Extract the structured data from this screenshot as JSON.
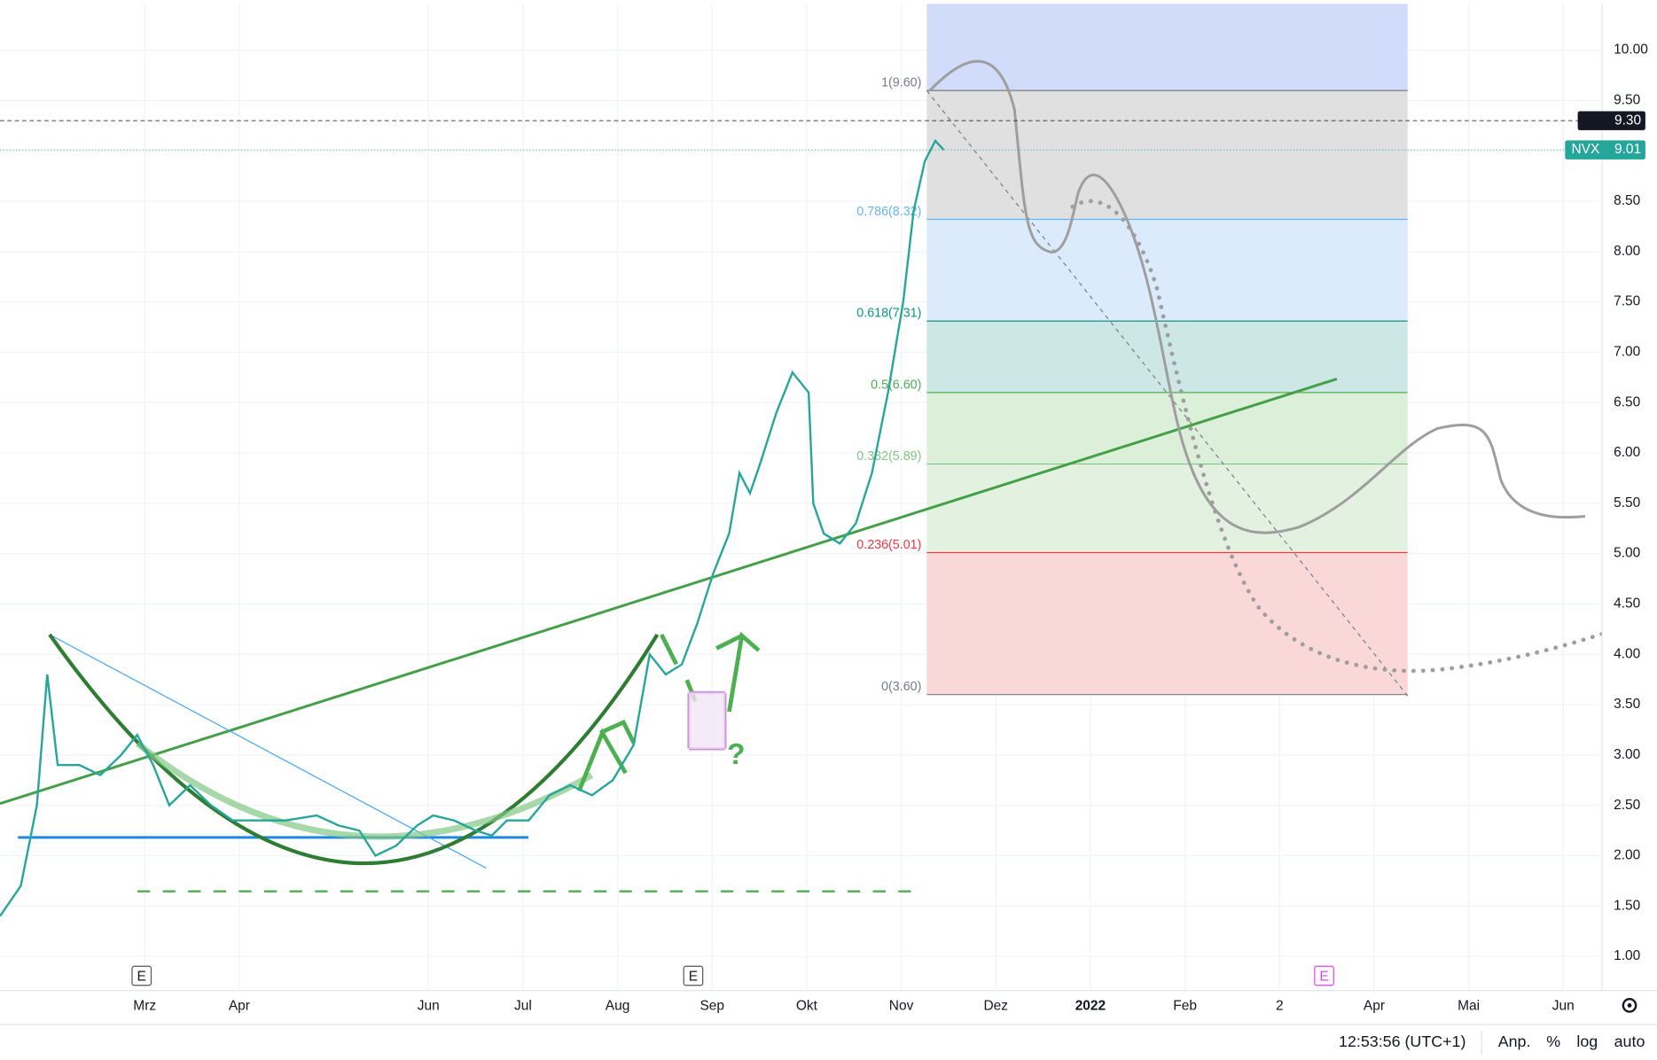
{
  "chart_data": {
    "type": "line",
    "series": [
      {
        "name": "NVX",
        "color": "#26a69a",
        "x": [
          0.47,
          0.69,
          0.86,
          0.97,
          1.08,
          1.31,
          1.53,
          1.75,
          1.92,
          2.09,
          2.26,
          2.48,
          2.7,
          2.93,
          3.15,
          3.49,
          3.82,
          4.05,
          4.27,
          4.44,
          4.66,
          4.88,
          5.05,
          5.27,
          5.5,
          5.67,
          5.83,
          6.06,
          6.28,
          6.5,
          6.73,
          6.95,
          7.17,
          7.34,
          7.51,
          7.68,
          7.84,
          8.01,
          8.18,
          8.29,
          8.4,
          8.51,
          8.68,
          8.85,
          9.02,
          9.07,
          9.18,
          9.35,
          9.52,
          9.69,
          9.86,
          10.02,
          10.13,
          10.25,
          10.36,
          10.45
        ],
        "values": [
          1.4,
          1.7,
          2.5,
          3.8,
          2.9,
          2.9,
          2.8,
          3.0,
          3.2,
          2.9,
          2.5,
          2.7,
          2.5,
          2.35,
          2.35,
          2.35,
          2.4,
          2.3,
          2.25,
          2.0,
          2.1,
          2.3,
          2.4,
          2.35,
          2.25,
          2.2,
          2.35,
          2.35,
          2.6,
          2.7,
          2.6,
          2.75,
          3.1,
          4.0,
          3.8,
          3.9,
          4.3,
          4.8,
          5.2,
          5.8,
          5.6,
          5.9,
          6.4,
          6.8,
          6.6,
          5.5,
          5.2,
          5.1,
          5.3,
          5.8,
          6.6,
          7.5,
          8.4,
          8.9,
          9.1,
          9.01
        ]
      }
    ],
    "xlim": [
      0.47,
      17.41
    ],
    "xticks": [
      {
        "value": 2,
        "label": "Mrz"
      },
      {
        "value": 3,
        "label": "Apr"
      },
      {
        "value": 5,
        "label": "Jun"
      },
      {
        "value": 6,
        "label": "Jul"
      },
      {
        "value": 7,
        "label": "Aug"
      },
      {
        "value": 8,
        "label": "Sep"
      },
      {
        "value": 9,
        "label": "Okt"
      },
      {
        "value": 10,
        "label": "Nov"
      },
      {
        "value": 11,
        "label": "Dez"
      },
      {
        "value": 12,
        "label": "2022"
      },
      {
        "value": 13,
        "label": "Feb"
      },
      {
        "value": 14,
        "label": "2"
      },
      {
        "value": 15,
        "label": "Apr"
      },
      {
        "value": 16,
        "label": "Mai"
      },
      {
        "value": 17,
        "label": "Jun"
      }
    ],
    "ylim": [
      0.66,
      10.46
    ],
    "yticks": [
      {
        "value": 1,
        "label": "1.00"
      },
      {
        "value": 1.5,
        "label": "1.50"
      },
      {
        "value": 2,
        "label": "2.00"
      },
      {
        "value": 2.5,
        "label": "2.50"
      },
      {
        "value": 3,
        "label": "3.00"
      },
      {
        "value": 3.5,
        "label": "3.50"
      },
      {
        "value": 4,
        "label": "4.00"
      },
      {
        "value": 4.5,
        "label": "4.50"
      },
      {
        "value": 5,
        "label": "5.00"
      },
      {
        "value": 5.5,
        "label": "5.50"
      },
      {
        "value": 6,
        "label": "6.00"
      },
      {
        "value": 6.5,
        "label": "6.50"
      },
      {
        "value": 7,
        "label": "7.00"
      },
      {
        "value": 7.5,
        "label": "7.50"
      },
      {
        "value": 8,
        "label": "8.00"
      },
      {
        "value": 8.5,
        "label": "8.50"
      },
      {
        "value": 9,
        "label": "9.00"
      },
      {
        "value": 9.5,
        "label": "9.50"
      },
      {
        "value": 10,
        "label": "10.00"
      }
    ],
    "grid": true,
    "fib": [
      {
        "label": "1(9.60)",
        "value": 9.6,
        "color": "#787b86",
        "fill": "#e0e0e0"
      },
      {
        "label": "0.786(8.32)",
        "value": 8.32,
        "color": "#64b5f6",
        "fill": "#dcebfb"
      },
      {
        "label": "0.618(7.31)",
        "value": 7.31,
        "color": "#089981",
        "fill": "#cde7e6"
      },
      {
        "label": "0.5(6.60)",
        "value": 6.6,
        "color": "#4caf50",
        "fill": "#dcefd9"
      },
      {
        "label": "0.382(5.89)",
        "value": 5.89,
        "color": "#81c784",
        "fill": "#e3f2e0"
      },
      {
        "label": "0.236(5.01)",
        "value": 5.01,
        "color": "#f23645",
        "fill": "#fbd8d8"
      },
      {
        "label": "0(3.60)",
        "value": 3.6,
        "color": "#787b86",
        "fill": null
      }
    ],
    "price_labels": [
      {
        "label": "9.30",
        "value": 9.3,
        "color": "#131722"
      },
      {
        "name": "NVX",
        "label": "9.01",
        "value": 9.01,
        "color": "#26a69a"
      }
    ],
    "annotations": [
      "?",
      "E",
      "E",
      "E"
    ],
    "footer": {
      "time": "12:53:56 (UTC+1)",
      "buttons": [
        "Anp.",
        "%",
        "log",
        "auto"
      ]
    }
  }
}
